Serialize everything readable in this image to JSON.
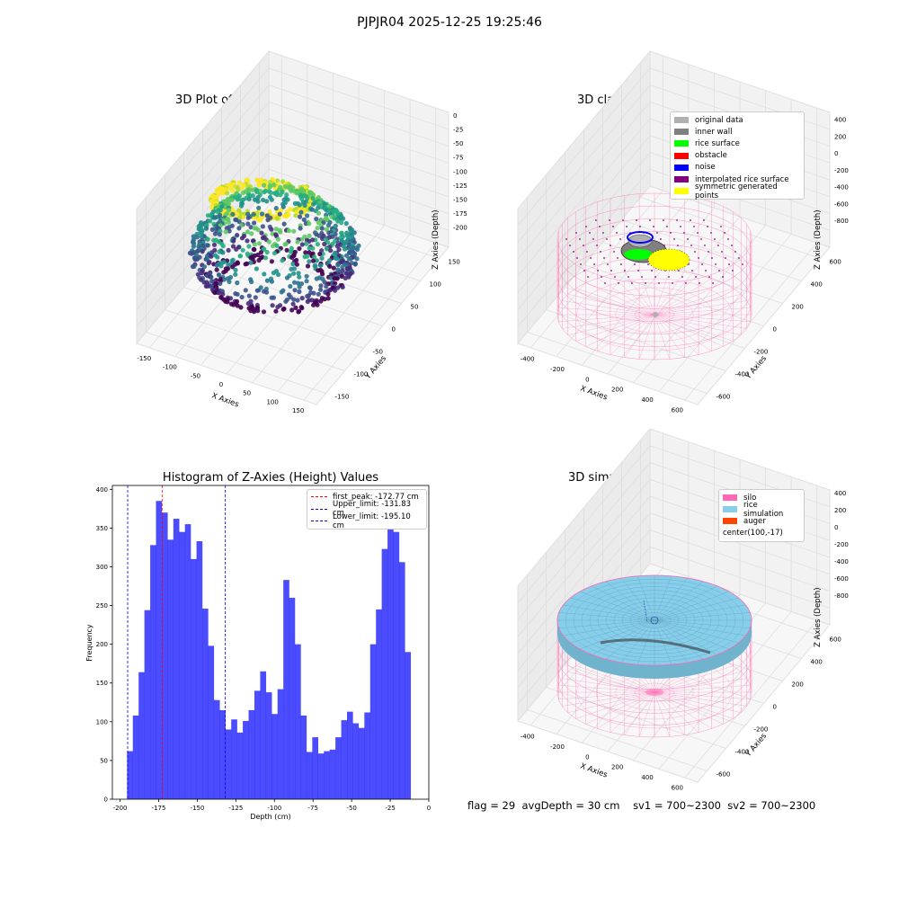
{
  "suptitle": "PJPJR04 2025-12-25 19:25:46",
  "panel_raw": {
    "title": "3D Plot of Silo Interior(row data)",
    "xlabel": "X Axies",
    "ylabel": "Y Axies",
    "zlabel": "Z Axies (Depth)",
    "xticks": [
      "-150",
      "-100",
      "-50",
      "0",
      "50",
      "100",
      "150"
    ],
    "yticks": [
      "150",
      "100",
      "50",
      "0",
      "-50",
      "-100",
      "-150"
    ],
    "zticks": [
      "0",
      "-25",
      "-50",
      "-75",
      "-100",
      "-125",
      "-150",
      "-175",
      "-200"
    ]
  },
  "panel_classify": {
    "title": "3D classify of Silo Interior",
    "xlabel": "X Axies",
    "ylabel": "Y Axies",
    "zlabel": "Z Axies (Depth)",
    "xticks": [
      "-400",
      "-200",
      "0",
      "200",
      "400",
      "600"
    ],
    "yticks": [
      "600",
      "400",
      "200",
      "0",
      "-200",
      "-400",
      "-600"
    ],
    "zticks": [
      "400",
      "200",
      "0",
      "-200",
      "-400",
      "-600",
      "-800"
    ],
    "legend": [
      {
        "label": "original data",
        "color": "#b0b0b0"
      },
      {
        "label": "inner wall",
        "color": "#808080"
      },
      {
        "label": "rice surface",
        "color": "#00ff00"
      },
      {
        "label": "obstacle",
        "color": "#ff0000"
      },
      {
        "label": "noise",
        "color": "#0000ff"
      },
      {
        "label": "interpolated rice surface",
        "color": "#800080"
      },
      {
        "label": "symmetric generated points",
        "color": "#ffff00"
      }
    ]
  },
  "panel_sim": {
    "title": "3D simulation of Silo Interior",
    "xlabel": "X Axies",
    "ylabel": "Y Axies",
    "zlabel": "Z Axies (Depth)",
    "xticks": [
      "-400",
      "-200",
      "0",
      "200",
      "400",
      "600"
    ],
    "yticks": [
      "600",
      "400",
      "200",
      "0",
      "-200",
      "-400",
      "-600"
    ],
    "zticks": [
      "400",
      "200",
      "0",
      "-200",
      "-400",
      "-600",
      "-800"
    ],
    "legend": [
      {
        "label": "silo",
        "color": "#ff69b4"
      },
      {
        "label": "rice simulation",
        "color": "#87ceeb"
      },
      {
        "label": "auger",
        "color": "#ff4500"
      },
      {
        "label": "center(100,-17)",
        "color": ""
      }
    ]
  },
  "status": {
    "flag": "flag = 29",
    "avg_depth": "avgDepth = 30 cm",
    "sv1": "sv1 = 700~2300",
    "sv2": "sv2 = 700~2300"
  },
  "chart_data": {
    "type": "bar",
    "title": "Histogram of Z-Axies (Height) Values",
    "xlabel": "Depth (cm)",
    "ylabel": "Frequency",
    "xlim": [
      -205,
      0
    ],
    "ylim": [
      0,
      405
    ],
    "xticks": [
      -200,
      -175,
      -150,
      -125,
      -100,
      -75,
      -50,
      -25,
      0
    ],
    "yticks": [
      0,
      50,
      100,
      150,
      200,
      250,
      300,
      350,
      400
    ],
    "bar_color": "#0000ff",
    "bin_start": -195.5,
    "bin_width": 3.75,
    "values": [
      62,
      108,
      164,
      244,
      328,
      385,
      370,
      335,
      362,
      345,
      355,
      310,
      333,
      246,
      198,
      128,
      115,
      90,
      103,
      86,
      101,
      115,
      140,
      165,
      138,
      110,
      142,
      283,
      260,
      200,
      108,
      61,
      80,
      59,
      62,
      64,
      80,
      102,
      113,
      98,
      92,
      112,
      200,
      245,
      323,
      380,
      345,
      306,
      190
    ],
    "lines": [
      {
        "label": "first_peak: -172.77 cm",
        "x": -172.77,
        "color": "#ff0000"
      },
      {
        "label": "Upper_limit: -131.83 cm",
        "x": -131.83,
        "color": "#0000ff"
      },
      {
        "label": "Lower_limit: -195.10 cm",
        "x": -195.1,
        "color": "#0000ff"
      }
    ]
  }
}
